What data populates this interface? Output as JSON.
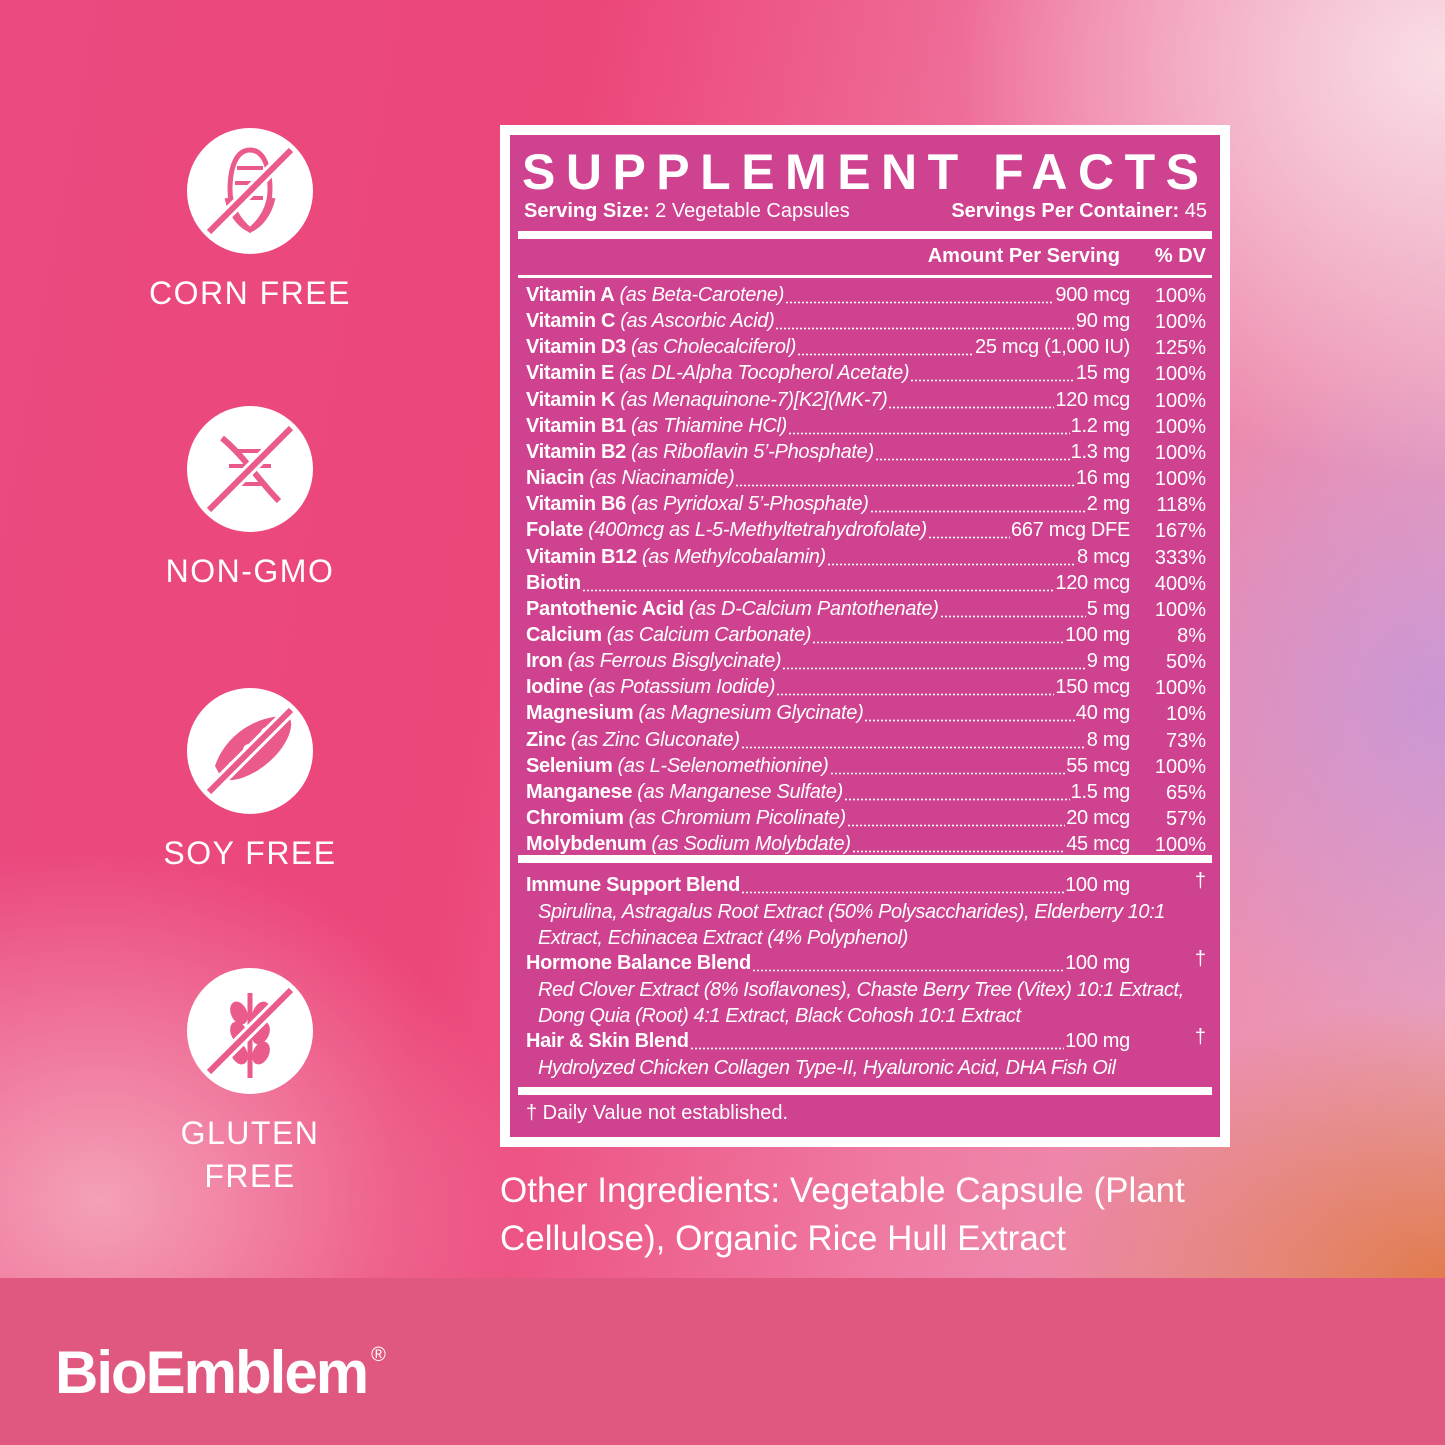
{
  "badges": [
    {
      "label": "CORN FREE",
      "icon": "corn-icon"
    },
    {
      "label": "NON-GMO",
      "icon": "dna-icon"
    },
    {
      "label": "SOY FREE",
      "icon": "soybean-icon"
    },
    {
      "label": "GLUTEN FREE",
      "label_lines": [
        "GLUTEN",
        "FREE"
      ],
      "icon": "wheat-icon"
    }
  ],
  "facts": {
    "title": "SUPPLEMENT FACTS",
    "serving_size_label": "Serving Size:",
    "serving_size": "2 Vegetable Capsules",
    "servings_label": "Servings Per Container:",
    "servings": "45",
    "amount_header": "Amount Per Serving",
    "dv_header": "% DV",
    "rows": [
      {
        "name": "Vitamin A",
        "source": "(as Beta-Carotene)",
        "amount": "900 mcg",
        "dv": "100%"
      },
      {
        "name": "Vitamin C",
        "source": "(as Ascorbic Acid)",
        "amount": "90 mg",
        "dv": "100%"
      },
      {
        "name": "Vitamin D3",
        "source": "(as Cholecalciferol)",
        "amount": "25 mcg (1,000 IU)",
        "dv": "125%"
      },
      {
        "name": "Vitamin E",
        "source": "(as DL-Alpha Tocopherol Acetate)",
        "amount": "15 mg",
        "dv": "100%"
      },
      {
        "name": "Vitamin K",
        "source": "(as Menaquinone-7)[K2](MK-7)",
        "amount": "120 mcg",
        "dv": "100%"
      },
      {
        "name": "Vitamin B1",
        "source": "(as Thiamine HCl)",
        "amount": "1.2 mg",
        "dv": "100%"
      },
      {
        "name": "Vitamin B2",
        "source": "(as Riboflavin 5’-Phosphate)",
        "amount": "1.3 mg",
        "dv": "100%"
      },
      {
        "name": "Niacin",
        "source": "(as Niacinamide)",
        "amount": "16 mg",
        "dv": "100%"
      },
      {
        "name": "Vitamin B6",
        "source": "(as Pyridoxal 5’-Phosphate)",
        "amount": "2 mg",
        "dv": "118%"
      },
      {
        "name": "Folate",
        "source": "(400mcg as L-5-Methyltetrahydrofolate)",
        "amount": "667 mcg DFE",
        "dv": "167%"
      },
      {
        "name": "Vitamin B12",
        "source": "(as Methylcobalamin)",
        "amount": "8 mcg",
        "dv": "333%"
      },
      {
        "name": "Biotin",
        "source": "",
        "amount": "120 mcg",
        "dv": "400%"
      },
      {
        "name": "Pantothenic Acid",
        "source": "(as D-Calcium Pantothenate)",
        "amount": "5 mg",
        "dv": "100%"
      },
      {
        "name": "Calcium",
        "source": "(as Calcium Carbonate)",
        "amount": "100 mg",
        "dv": "8%"
      },
      {
        "name": "Iron",
        "source": "(as Ferrous Bisglycinate)",
        "amount": "9 mg",
        "dv": "50%"
      },
      {
        "name": "Iodine",
        "source": "(as Potassium Iodide)",
        "amount": "150 mcg",
        "dv": "100%"
      },
      {
        "name": "Magnesium",
        "source": "(as Magnesium Glycinate)",
        "amount": "40 mg",
        "dv": "10%"
      },
      {
        "name": "Zinc",
        "source": "(as Zinc Gluconate)",
        "amount": "8 mg",
        "dv": "73%"
      },
      {
        "name": "Selenium",
        "source": "(as L-Selenomethionine)",
        "amount": "55 mcg",
        "dv": "100%"
      },
      {
        "name": "Manganese",
        "source": "(as Manganese Sulfate)",
        "amount": "1.5 mg",
        "dv": "65%"
      },
      {
        "name": "Chromium",
        "source": "(as Chromium Picolinate)",
        "amount": "20 mcg",
        "dv": "57%"
      },
      {
        "name": "Molybdenum",
        "source": "(as Sodium Molybdate)",
        "amount": "45 mcg",
        "dv": "100%"
      }
    ],
    "blends": [
      {
        "name": "Immune Support Blend",
        "amount": "100 mg",
        "dv": "†",
        "ingredients": "Spirulina, Astragalus Root Extract (50% Polysaccharides), Elderberry 10:1 Extract, Echinacea Extract (4% Polyphenol)"
      },
      {
        "name": "Hormone Balance Blend",
        "amount": "100 mg",
        "dv": "†",
        "ingredients": "Red Clover Extract (8% Isoflavones), Chaste Berry Tree (Vitex) 10:1 Extract, Dong Quia (Root) 4:1 Extract, Black Cohosh 10:1 Extract"
      },
      {
        "name": "Hair & Skin Blend",
        "amount": "100 mg",
        "dv": "†",
        "ingredients": "Hydrolyzed Chicken Collagen Type-II, Hyaluronic Acid, DHA Fish Oil"
      }
    ],
    "footnote": "† Daily Value not established."
  },
  "other_ingredients": "Other Ingredients: Vegetable Capsule (Plant Cellulose), Organic Rice Hull Extract",
  "brand": {
    "name": "BioEmblem",
    "mark": "®"
  },
  "colors": {
    "label_bg": "#cf4290",
    "footer_bg": "#e0587f",
    "icon_pink": "#ea5a8a"
  }
}
